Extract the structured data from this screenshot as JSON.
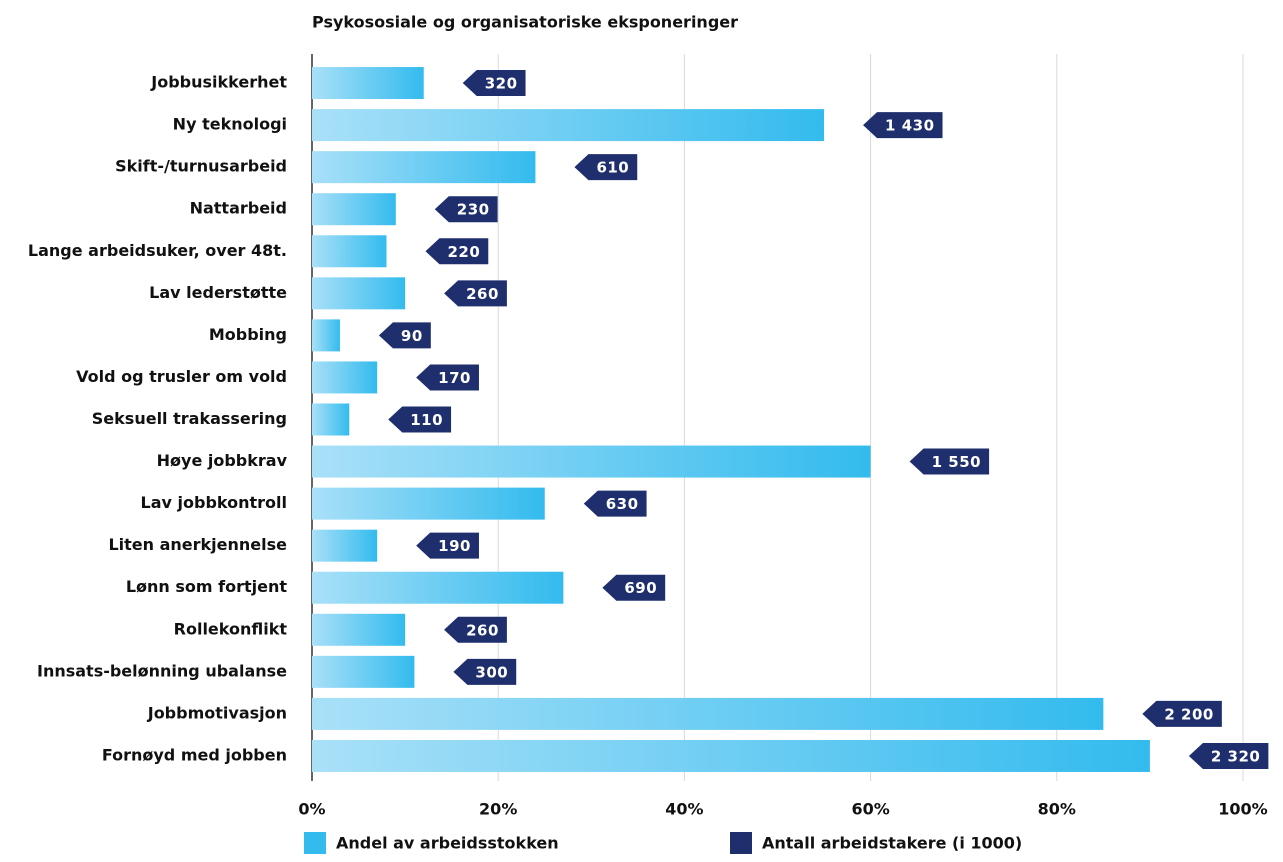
{
  "chart_data": {
    "type": "bar",
    "orientation": "horizontal",
    "title": "Psykososiale og organisatoriske eksponeringer",
    "categories": [
      "Jobbusikkerhet",
      "Ny teknologi",
      "Skift-/turnusarbeid",
      "Nattarbeid",
      "Lange arbeidsuker, over 48t.",
      "Lav lederstøtte",
      "Mobbing",
      "Vold og trusler om vold",
      "Seksuell trakassering",
      "Høye jobbkrav",
      "Lav jobbkontroll",
      "Liten anerkjennelse",
      "Lønn som fortjent",
      "Rollekonflikt",
      "Innsats-belønning ubalanse",
      "Jobbmotivasjon",
      "Fornøyd med jobben"
    ],
    "series": [
      {
        "name": "Andel av arbeidsstokken",
        "color": "#33bbee",
        "values": [
          12,
          55,
          24,
          9,
          8,
          10,
          3,
          7,
          4,
          60,
          25,
          7,
          27,
          10,
          11,
          85,
          90
        ]
      },
      {
        "name": "Antall arbeidstakere (i 1000)",
        "color": "#1f2f6e",
        "values": [
          320,
          1430,
          610,
          230,
          220,
          260,
          90,
          170,
          110,
          1550,
          630,
          190,
          690,
          260,
          300,
          2200,
          2320
        ],
        "value_labels": [
          "320",
          "1 430",
          "610",
          "230",
          "220",
          "260",
          "90",
          "170",
          "110",
          "1 550",
          "630",
          "190",
          "690",
          "260",
          "300",
          "2 200",
          "2 320"
        ]
      }
    ],
    "xlim": [
      0,
      100
    ],
    "xticks": [
      {
        "value": 0,
        "label": "0%"
      },
      {
        "value": 20,
        "label": "20%"
      },
      {
        "value": 40,
        "label": "40%"
      },
      {
        "value": 60,
        "label": "60%"
      },
      {
        "value": 80,
        "label": "80%"
      },
      {
        "value": 100,
        "label": "100%"
      }
    ],
    "grid": true
  }
}
